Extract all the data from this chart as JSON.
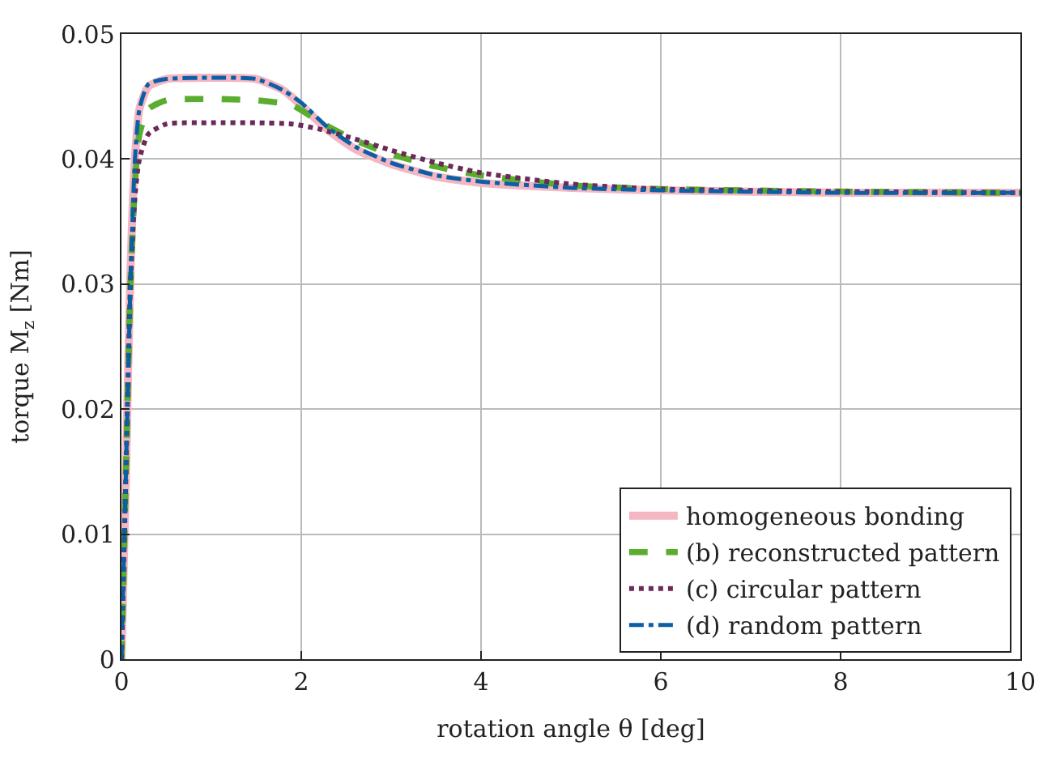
{
  "chart_data": {
    "type": "line",
    "xlabel": "rotation angle θ [deg]",
    "ylabel": "torque M$_{z}$ [Nm]",
    "xlim": [
      0,
      10
    ],
    "xticks": [
      0,
      2,
      4,
      6,
      8,
      10
    ],
    "ylim": [
      0,
      0.05
    ],
    "yticks": [
      0,
      0.01,
      0.02,
      0.03,
      0.04,
      0.05
    ],
    "grid": true,
    "legend": "bottom right",
    "marker": "none",
    "series": [
      {
        "name": "homogeneous bonding",
        "color": "#f4b6c2",
        "line_style": "solid",
        "x": [
          0,
          0.05,
          0.1,
          0.15,
          0.2,
          0.3,
          0.5,
          1.0,
          1.5,
          1.8,
          2.0,
          2.3,
          2.6,
          3.0,
          3.5,
          4.0,
          5.0,
          6.0,
          8.0,
          10.0
        ],
        "values": [
          0,
          0.015,
          0.031,
          0.04,
          0.044,
          0.0458,
          0.0464,
          0.0465,
          0.0464,
          0.0455,
          0.0443,
          0.0423,
          0.0408,
          0.0396,
          0.0386,
          0.0381,
          0.0377,
          0.0375,
          0.0373,
          0.0373
        ]
      },
      {
        "name": "(b) reconstructed pattern",
        "color": "#5aad2e",
        "line_style": "dashed",
        "x": [
          0,
          0.05,
          0.1,
          0.15,
          0.2,
          0.3,
          0.5,
          1.0,
          1.5,
          1.9,
          2.2,
          2.6,
          3.0,
          3.5,
          4.0,
          5.0,
          6.0,
          8.0,
          10.0
        ],
        "values": [
          0,
          0.015,
          0.03,
          0.038,
          0.042,
          0.044,
          0.0447,
          0.0448,
          0.0447,
          0.0443,
          0.043,
          0.0415,
          0.0404,
          0.0394,
          0.0387,
          0.0379,
          0.0376,
          0.0374,
          0.0373
        ]
      },
      {
        "name": "(c) circular pattern",
        "color": "#6b2a5a",
        "line_style": "dotted",
        "x": [
          0,
          0.05,
          0.1,
          0.15,
          0.2,
          0.3,
          0.5,
          1.0,
          1.5,
          1.9,
          2.2,
          2.6,
          3.0,
          3.5,
          4.0,
          5.0,
          6.0,
          8.0,
          10.0
        ],
        "values": [
          0,
          0.015,
          0.03,
          0.037,
          0.04,
          0.042,
          0.0428,
          0.0429,
          0.0429,
          0.0428,
          0.0424,
          0.0416,
          0.0407,
          0.0397,
          0.0389,
          0.038,
          0.0376,
          0.0374,
          0.0373
        ]
      },
      {
        "name": "(d) random pattern",
        "color": "#0b5fa5",
        "line_style": "dashdot",
        "x": [
          0,
          0.05,
          0.1,
          0.15,
          0.2,
          0.3,
          0.5,
          1.0,
          1.5,
          1.8,
          2.0,
          2.3,
          2.6,
          3.0,
          3.5,
          4.0,
          5.0,
          6.0,
          8.0,
          10.0
        ],
        "values": [
          0,
          0.015,
          0.03,
          0.04,
          0.044,
          0.046,
          0.0464,
          0.0465,
          0.0464,
          0.0455,
          0.0445,
          0.0425,
          0.041,
          0.0397,
          0.0387,
          0.0382,
          0.0377,
          0.0375,
          0.0373,
          0.0373
        ]
      }
    ]
  }
}
